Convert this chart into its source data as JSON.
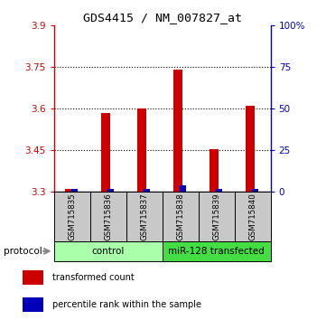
{
  "title": "GDS4415 / NM_007827_at",
  "samples": [
    "GSM715835",
    "GSM715836",
    "GSM715837",
    "GSM715838",
    "GSM715839",
    "GSM715840"
  ],
  "red_values": [
    3.31,
    3.585,
    3.6,
    3.74,
    3.455,
    3.61
  ],
  "blue_percentiles": [
    2,
    2,
    2,
    4,
    2,
    2
  ],
  "ylim_left": [
    3.3,
    3.9
  ],
  "ylim_right": [
    0,
    100
  ],
  "yticks_left": [
    3.3,
    3.45,
    3.6,
    3.75,
    3.9
  ],
  "yticks_right": [
    0,
    25,
    50,
    75,
    100
  ],
  "ytick_labels_right": [
    "0",
    "25",
    "50",
    "75",
    "100%"
  ],
  "red_color": "#cc0000",
  "blue_color": "#0000bb",
  "sample_bg_color": "#c8c8c8",
  "groups": [
    {
      "label": "control",
      "indices": [
        0,
        1,
        2
      ],
      "color": "#aaffaa"
    },
    {
      "label": "miR-128 transfected",
      "indices": [
        3,
        4,
        5
      ],
      "color": "#44dd44"
    }
  ],
  "protocol_label": "protocol",
  "legend_red": "transformed count",
  "legend_blue": "percentile rank within the sample",
  "baseline": 3.3,
  "bar_width": 0.25
}
